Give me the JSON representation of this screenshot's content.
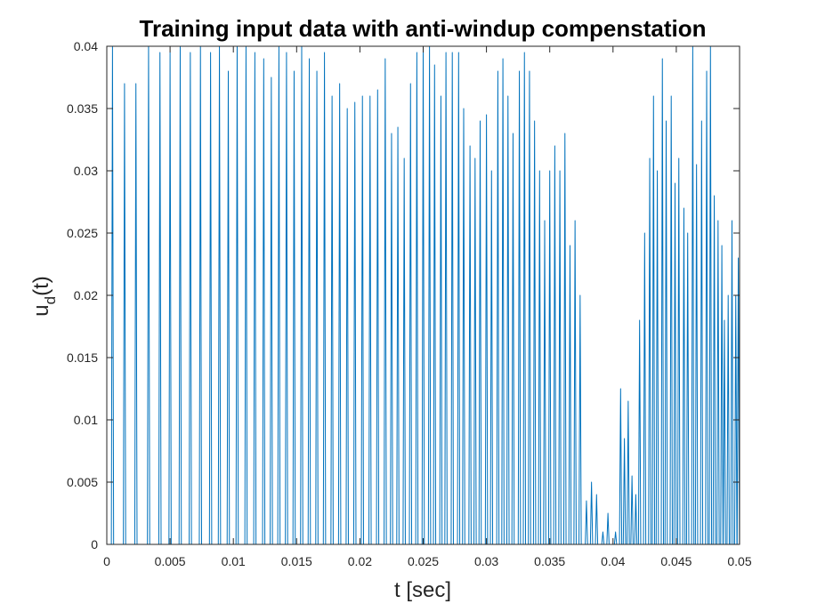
{
  "chart_data": {
    "type": "line",
    "title": "Training input data with anti-windup compenstation",
    "xlabel": "t [sec]",
    "ylabel_main": "u",
    "ylabel_sub": "d",
    "ylabel_tail": "(t)",
    "xlim": [
      0,
      0.05
    ],
    "ylim": [
      0,
      0.04
    ],
    "x_ticks": [
      0,
      0.005,
      0.01,
      0.015,
      0.02,
      0.025,
      0.03,
      0.035,
      0.04,
      0.045,
      0.05
    ],
    "x_tick_labels": [
      "0",
      "0.005",
      "0.01",
      "0.015",
      "0.02",
      "0.025",
      "0.03",
      "0.035",
      "0.04",
      "0.045",
      "0.05"
    ],
    "y_ticks": [
      0,
      0.005,
      0.01,
      0.015,
      0.02,
      0.025,
      0.03,
      0.035,
      0.04
    ],
    "y_tick_labels": [
      "0",
      "0.005",
      "0.01",
      "0.015",
      "0.02",
      "0.025",
      "0.03",
      "0.035",
      "0.04"
    ],
    "grid": false,
    "series_color": "#0072BD",
    "pulse_width": 0.00018,
    "pulses": [
      [
        0.00045,
        0.04
      ],
      [
        0.0014,
        0.037
      ],
      [
        0.0023,
        0.037
      ],
      [
        0.0033,
        0.04
      ],
      [
        0.0042,
        0.0395
      ],
      [
        0.005,
        0.0395
      ],
      [
        0.0058,
        0.04
      ],
      [
        0.0066,
        0.0395
      ],
      [
        0.0074,
        0.04
      ],
      [
        0.0082,
        0.0395
      ],
      [
        0.0089,
        0.04
      ],
      [
        0.0096,
        0.038
      ],
      [
        0.0103,
        0.04
      ],
      [
        0.011,
        0.04
      ],
      [
        0.0117,
        0.0395
      ],
      [
        0.0124,
        0.039
      ],
      [
        0.013,
        0.0375
      ],
      [
        0.0136,
        0.04
      ],
      [
        0.0142,
        0.0395
      ],
      [
        0.0148,
        0.038
      ],
      [
        0.0154,
        0.04
      ],
      [
        0.016,
        0.039
      ],
      [
        0.0166,
        0.038
      ],
      [
        0.0172,
        0.0395
      ],
      [
        0.0178,
        0.036
      ],
      [
        0.0184,
        0.037
      ],
      [
        0.019,
        0.035
      ],
      [
        0.0196,
        0.0355
      ],
      [
        0.0202,
        0.036
      ],
      [
        0.0208,
        0.036
      ],
      [
        0.0214,
        0.0365
      ],
      [
        0.022,
        0.039
      ],
      [
        0.0225,
        0.033
      ],
      [
        0.023,
        0.0335
      ],
      [
        0.0235,
        0.031
      ],
      [
        0.024,
        0.037
      ],
      [
        0.0245,
        0.0395
      ],
      [
        0.025,
        0.04
      ],
      [
        0.0255,
        0.04
      ],
      [
        0.0259,
        0.0385
      ],
      [
        0.0264,
        0.036
      ],
      [
        0.0268,
        0.0395
      ],
      [
        0.0273,
        0.0395
      ],
      [
        0.0278,
        0.0395
      ],
      [
        0.0282,
        0.035
      ],
      [
        0.0287,
        0.032
      ],
      [
        0.0291,
        0.031
      ],
      [
        0.0295,
        0.034
      ],
      [
        0.03,
        0.0345
      ],
      [
        0.0304,
        0.03
      ],
      [
        0.0309,
        0.038
      ],
      [
        0.0313,
        0.039
      ],
      [
        0.0317,
        0.036
      ],
      [
        0.0321,
        0.033
      ],
      [
        0.0326,
        0.038
      ],
      [
        0.033,
        0.0395
      ],
      [
        0.0334,
        0.038
      ],
      [
        0.0338,
        0.034
      ],
      [
        0.0342,
        0.03
      ],
      [
        0.0346,
        0.026
      ],
      [
        0.035,
        0.03
      ],
      [
        0.0354,
        0.032
      ],
      [
        0.0358,
        0.03
      ],
      [
        0.0362,
        0.033
      ],
      [
        0.0366,
        0.024
      ],
      [
        0.037,
        0.026
      ],
      [
        0.0374,
        0.02
      ],
      [
        0.0379,
        0.0035
      ],
      [
        0.0383,
        0.005
      ],
      [
        0.0387,
        0.004
      ],
      [
        0.0392,
        0.001
      ],
      [
        0.0396,
        0.0025
      ],
      [
        0.0402,
        0.001
      ],
      [
        0.0406,
        0.0125
      ],
      [
        0.0409,
        0.0085
      ],
      [
        0.0412,
        0.0115
      ],
      [
        0.0415,
        0.0055
      ],
      [
        0.0418,
        0.004
      ],
      [
        0.0421,
        0.018
      ],
      [
        0.0425,
        0.025
      ],
      [
        0.0429,
        0.031
      ],
      [
        0.0432,
        0.036
      ],
      [
        0.0435,
        0.03
      ],
      [
        0.0439,
        0.039
      ],
      [
        0.0442,
        0.034
      ],
      [
        0.0446,
        0.036
      ],
      [
        0.0449,
        0.029
      ],
      [
        0.0452,
        0.031
      ],
      [
        0.0456,
        0.027
      ],
      [
        0.0459,
        0.025
      ],
      [
        0.0463,
        0.04
      ],
      [
        0.0466,
        0.0305
      ],
      [
        0.047,
        0.034
      ],
      [
        0.0474,
        0.038
      ],
      [
        0.0477,
        0.04
      ],
      [
        0.048,
        0.028
      ],
      [
        0.0483,
        0.026
      ],
      [
        0.0486,
        0.024
      ],
      [
        0.0488,
        0.018
      ],
      [
        0.0491,
        0.02
      ],
      [
        0.0494,
        0.026
      ],
      [
        0.0497,
        0.02
      ],
      [
        0.0499,
        0.023
      ]
    ]
  }
}
